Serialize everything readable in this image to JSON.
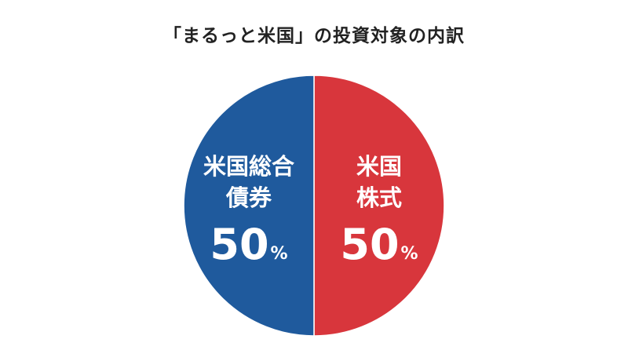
{
  "chart_data": {
    "type": "pie",
    "title": "「まるっと米国」の投資対象の内訳",
    "slices": [
      {
        "label_lines": [
          "米国",
          "株式"
        ],
        "value": 50,
        "unit": "%",
        "color": "#D8363C"
      },
      {
        "label_lines": [
          "米国総合",
          "債券"
        ],
        "value": 50,
        "unit": "%",
        "color": "#1F5A9D"
      }
    ]
  }
}
